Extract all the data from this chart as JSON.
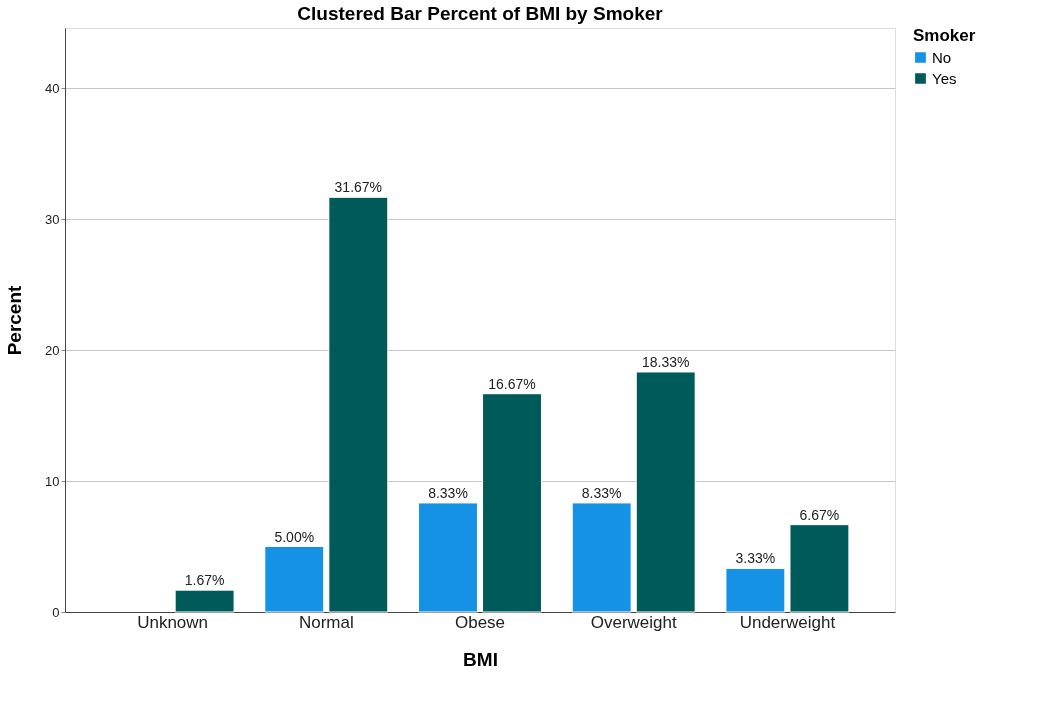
{
  "chart_data": {
    "type": "bar",
    "title": "Clustered Bar Percent of BMI by Smoker",
    "xlabel": "BMI",
    "ylabel": "Percent",
    "legend_title": "Smoker",
    "categories": [
      "Unknown",
      "Normal",
      "Obese",
      "Overweight",
      "Underweight"
    ],
    "series": [
      {
        "name": "No",
        "color": "#1591e6",
        "values": [
          null,
          5.0,
          8.33,
          8.33,
          3.33
        ],
        "value_labels": [
          null,
          "5.00%",
          "8.33%",
          "8.33%",
          "3.33%"
        ]
      },
      {
        "name": "Yes",
        "color": "#005a5a",
        "values": [
          1.67,
          31.67,
          16.67,
          18.33,
          6.67
        ],
        "value_labels": [
          "1.67%",
          "31.67%",
          "16.67%",
          "18.33%",
          "6.67%"
        ]
      }
    ],
    "ylim": [
      0,
      44.6
    ],
    "yticks": [
      0,
      10,
      20,
      30,
      40
    ],
    "grid": "y",
    "legend": "right"
  }
}
